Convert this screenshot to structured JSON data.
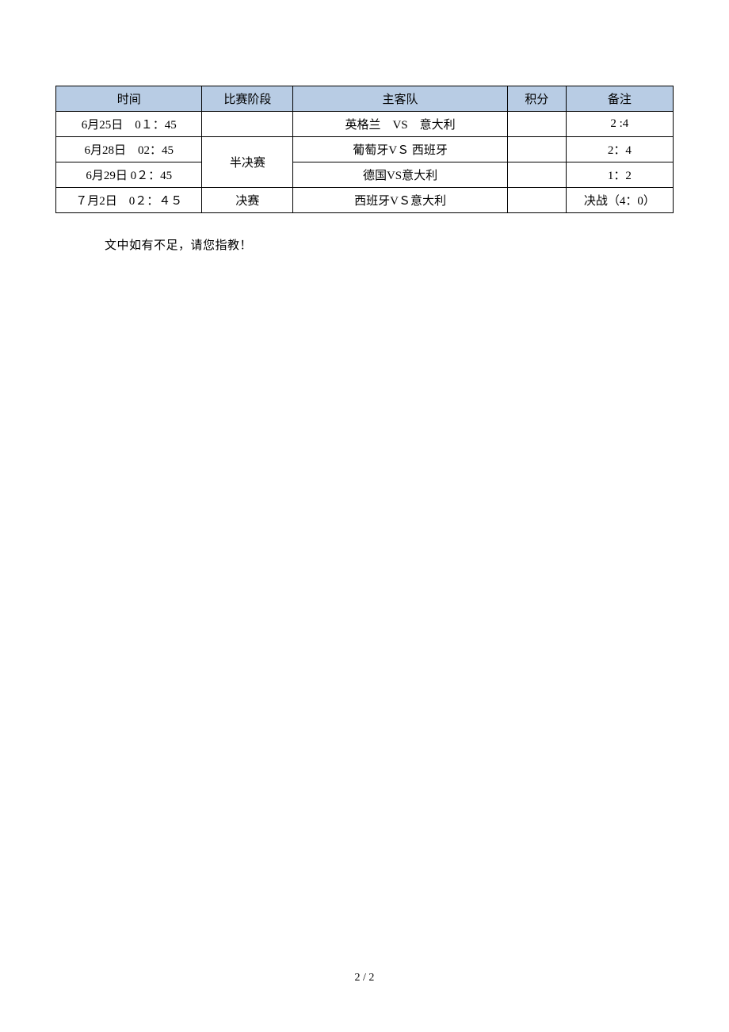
{
  "table": {
    "type": "table",
    "header_bg_color": "#b8cce4",
    "border_color": "#000000",
    "text_color": "#000000",
    "font_size": 15,
    "columns": [
      {
        "label": "时间",
        "width": "22.5%"
      },
      {
        "label": "比赛阶段",
        "width": "14%"
      },
      {
        "label": "主客队",
        "width": "33%"
      },
      {
        "label": "积分",
        "width": "9%"
      },
      {
        "label": "备注",
        "width": "16.5%"
      }
    ],
    "rows": [
      {
        "time": "6月25日　0１：45",
        "stage": "",
        "teams": "英格兰　VS　意大利",
        "points": "",
        "note": "2 :4",
        "stage_rowspan": 1
      },
      {
        "time": "6月28日　02：45",
        "stage": "半决赛",
        "teams": "葡萄牙VＳ 西班牙",
        "points": "",
        "note": "2：4",
        "stage_rowspan": 2
      },
      {
        "time": "6月29日 0２：45",
        "stage": null,
        "teams": "德国VS意大利",
        "points": "",
        "note": "1：2",
        "stage_rowspan": 0
      },
      {
        "time": "７月2日　0２：４５",
        "stage": "决赛",
        "teams": "西班牙VＳ意大利",
        "points": "",
        "note": "决战（4：0）",
        "stage_rowspan": 1
      }
    ]
  },
  "footer_text": "文中如有不足，请您指教！",
  "page_number": "2 / 2",
  "background_color": "#ffffff"
}
